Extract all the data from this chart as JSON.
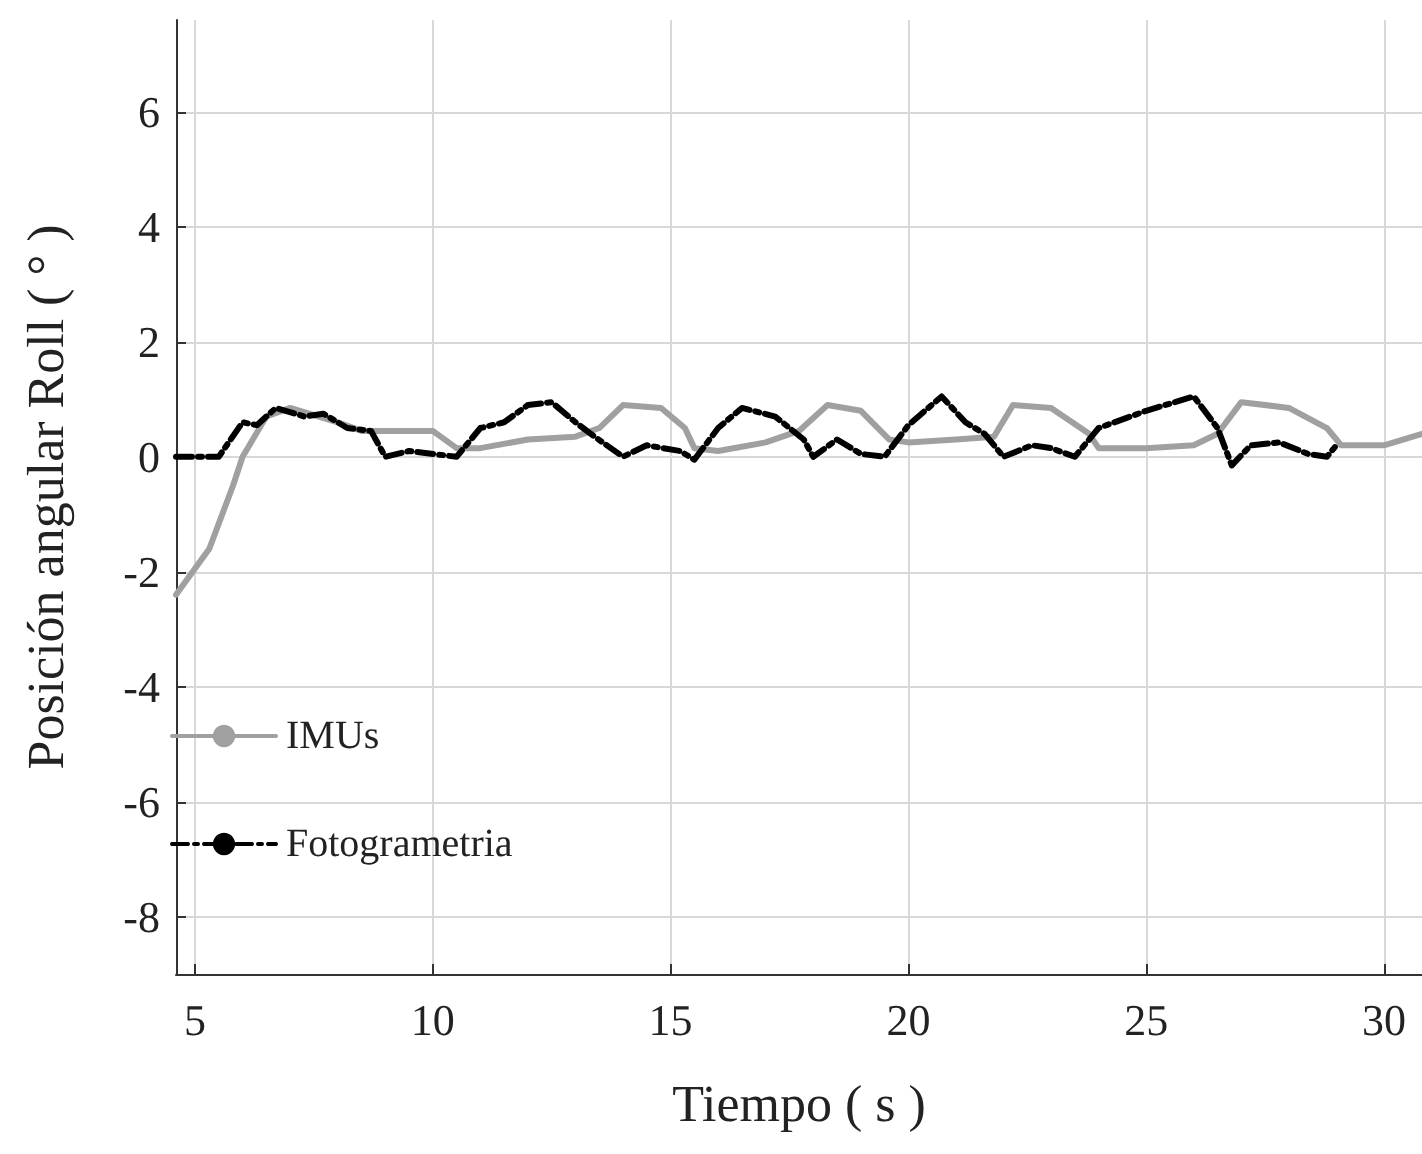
{
  "chart_data": {
    "type": "line",
    "xlabel": "Tiempo ( s )",
    "ylabel": "Posición angular Roll ( ° )",
    "xlim": [
      4.6,
      30.8
    ],
    "xticks": [
      5,
      10,
      15,
      20,
      25,
      30
    ],
    "ylim": [
      -9,
      7.6
    ],
    "yticks": [
      -8,
      -6,
      -4,
      -2,
      0,
      2,
      4,
      6
    ],
    "grid": true,
    "legend": "bottom left",
    "marker": "none",
    "series": [
      {
        "name": "IMUs",
        "color": "#a0a0a0",
        "line_style": "solid",
        "x": [
          4.6,
          5.3,
          5.8,
          6.0,
          6.5,
          7.0,
          8.0,
          8.5,
          9.0,
          10.0,
          10.5,
          11,
          12,
          13,
          13.5,
          14,
          14.8,
          15.3,
          15.5,
          16,
          17,
          17.7,
          18.3,
          19.0,
          19.6,
          20,
          21,
          21.8,
          22.2,
          23.0,
          23.8,
          24,
          25,
          26,
          26.5,
          27,
          28,
          28.8,
          29.1,
          30,
          30.8
        ],
        "values": [
          -2.4,
          -1.6,
          -0.5,
          0.0,
          0.7,
          0.85,
          0.6,
          0.45,
          0.45,
          0.45,
          0.15,
          0.15,
          0.3,
          0.35,
          0.5,
          0.9,
          0.85,
          0.5,
          0.15,
          0.1,
          0.25,
          0.45,
          0.9,
          0.8,
          0.3,
          0.25,
          0.3,
          0.35,
          0.9,
          0.85,
          0.4,
          0.15,
          0.15,
          0.2,
          0.4,
          0.95,
          0.85,
          0.5,
          0.2,
          0.2,
          0.4
        ]
      },
      {
        "name": "Fotogrametria",
        "color": "#000000",
        "line_style": "dashed",
        "x": [
          4.6,
          5.2,
          5.5,
          6,
          6.3,
          6.7,
          7.3,
          7.7,
          8.2,
          8.7,
          9,
          9.5,
          10.5,
          11,
          11.5,
          12,
          12.5,
          13,
          13.4,
          14,
          14.5,
          15.2,
          15.5,
          16,
          16.5,
          17.2,
          17.8,
          18,
          18.5,
          19,
          19.5,
          20,
          20.7,
          21.2,
          21.6,
          22,
          22.6,
          23,
          23.5,
          24,
          25,
          26,
          26.5,
          26.8,
          27.2,
          27.8,
          28.4,
          28.8,
          29
        ],
        "values": [
          0.0,
          0.0,
          0.0,
          0.6,
          0.55,
          0.85,
          0.7,
          0.75,
          0.5,
          0.45,
          0.0,
          0.1,
          0.0,
          0.5,
          0.6,
          0.9,
          0.95,
          0.6,
          0.35,
          0.0,
          0.2,
          0.1,
          -0.05,
          0.5,
          0.85,
          0.7,
          0.3,
          0.0,
          0.3,
          0.05,
          0.0,
          0.55,
          1.05,
          0.6,
          0.4,
          0.0,
          0.2,
          0.15,
          0.0,
          0.5,
          0.8,
          1.05,
          0.5,
          -0.15,
          0.2,
          0.25,
          0.05,
          0.0,
          0.2
        ]
      }
    ]
  }
}
